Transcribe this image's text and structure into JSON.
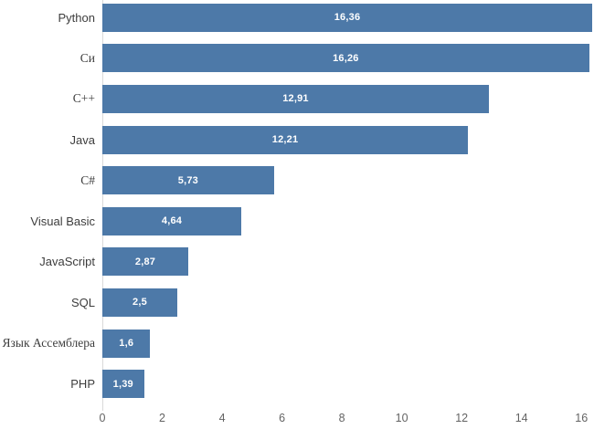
{
  "chart_data": {
    "type": "bar",
    "orientation": "horizontal",
    "title": "",
    "xlabel": "",
    "ylabel": "",
    "categories": [
      "Python",
      "Си",
      "C++",
      "Java",
      "C#",
      "Visual Basic",
      "JavaScript",
      "SQL",
      "Язык Ассемблера",
      "PHP"
    ],
    "values": [
      16.36,
      16.26,
      12.91,
      12.21,
      5.73,
      4.64,
      2.87,
      2.5,
      1.6,
      1.39
    ],
    "value_labels": [
      "16,36",
      "16,26",
      "12,91",
      "12,21",
      "5,73",
      "4,64",
      "2,87",
      "2,5",
      "1,6",
      "1,39"
    ],
    "x_ticks": [
      "0",
      "2",
      "4",
      "6",
      "8",
      "10",
      "12",
      "14",
      "16"
    ],
    "x_tick_values": [
      0,
      2,
      4,
      6,
      8,
      10,
      12,
      14,
      16
    ],
    "xlim": [
      0,
      16.36
    ],
    "grid": false,
    "legend": "none",
    "colors": {
      "bar": "#4d79a8",
      "value_label": "#ffffff",
      "category_label": "#3d3d3d",
      "tick_label": "#636363",
      "axis_line": "#d9d9d9",
      "background": "#ffffff"
    }
  }
}
